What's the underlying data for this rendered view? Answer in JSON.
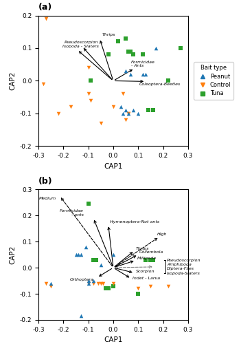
{
  "chart_data": [
    {
      "type": "scatter",
      "title": "(a)",
      "xlabel": "CAP1",
      "ylabel": "CAP2",
      "xlim": [
        -0.3,
        0.3
      ],
      "ylim": [
        -0.2,
        0.2
      ],
      "xticks": [
        -0.3,
        -0.2,
        -0.1,
        0.0,
        0.1,
        0.2,
        0.3
      ],
      "yticks": [
        -0.2,
        -0.1,
        0.0,
        0.1,
        0.2
      ],
      "grid": false,
      "legend": "right",
      "legend_title": "Bait type",
      "series": [
        {
          "name": "Peanut",
          "marker": "triangle_up",
          "x": [
            0.05,
            0.07,
            0.05,
            0.06,
            0.04,
            0.08,
            0.17,
            0.03,
            0.1,
            0.13,
            0.12
          ],
          "values": [
            0.03,
            0.02,
            -0.09,
            -0.1,
            -0.1,
            -0.09,
            0.1,
            -0.08,
            -0.1,
            0.02,
            0.02
          ]
        },
        {
          "name": "Control",
          "marker": "triangle_down",
          "x": [
            -0.27,
            -0.28,
            -0.22,
            -0.17,
            -0.1,
            -0.1,
            -0.09,
            -0.05,
            0.0,
            0.04,
            0.05,
            0.06,
            0.06
          ],
          "values": [
            0.19,
            -0.01,
            -0.1,
            -0.08,
            0.04,
            -0.04,
            -0.06,
            -0.13,
            -0.08,
            -0.04,
            -0.12,
            -0.1,
            -0.1
          ]
        },
        {
          "name": "Tuna",
          "marker": "square",
          "x": [
            -0.09,
            -0.02,
            0.02,
            0.05,
            0.06,
            0.07,
            0.08,
            0.12,
            0.14,
            0.16,
            0.22,
            0.27
          ],
          "values": [
            0.0,
            0.08,
            0.12,
            0.13,
            0.09,
            0.09,
            0.08,
            0.08,
            -0.09,
            -0.09,
            0.0,
            0.1
          ]
        }
      ],
      "arrow_origin": [
        0,
        0
      ],
      "annotations": [
        {
          "text": "Pseudoscorpion",
          "x": -0.195,
          "y": 0.113,
          "align": "left",
          "arrow_end": [
            -0.125,
            0.105
          ],
          "line_style": "solid"
        },
        {
          "text": "Isopoda - Slaters",
          "x": -0.205,
          "y": 0.1,
          "align": "left",
          "arrow_end": [
            -0.145,
            0.095
          ],
          "line_style": "solid"
        },
        {
          "text": "Thrips",
          "x": -0.045,
          "y": 0.135,
          "align": "left",
          "arrow_end": [
            -0.055,
            0.13
          ],
          "line_style": "solid"
        },
        {
          "text": "Formicidae\n- Ants",
          "x": 0.072,
          "y": 0.04,
          "align": "left",
          "arrow_end": [
            0.085,
            0.038
          ],
          "line_style": "solid"
        },
        {
          "text": "Coleoptera-Beetles",
          "x": 0.105,
          "y": -0.015,
          "align": "left",
          "arrow_end": [
            0.13,
            -0.002
          ],
          "line_style": "solid"
        }
      ]
    },
    {
      "type": "scatter",
      "title": "(b)",
      "xlabel": "CAP1",
      "ylabel": "CAP2",
      "xlim": [
        -0.3,
        0.3
      ],
      "ylim": [
        -0.2,
        0.3
      ],
      "xticks": [
        -0.3,
        -0.2,
        -0.1,
        0.0,
        0.1,
        0.2,
        0.3
      ],
      "yticks": [
        -0.2,
        -0.1,
        0.0,
        0.1,
        0.2,
        0.3
      ],
      "grid": false,
      "series": [
        {
          "marker": "triangle_up",
          "x": [
            -0.11,
            -0.13,
            -0.14,
            -0.15,
            -0.1,
            -0.08,
            -0.1,
            -0.25,
            -0.13,
            -0.05,
            0.0
          ],
          "values": [
            0.08,
            0.05,
            0.05,
            0.05,
            -0.05,
            -0.05,
            -0.06,
            -0.06,
            -0.185,
            0.01,
            0.05
          ]
        },
        {
          "marker": "triangle_down",
          "x": [
            -0.27,
            -0.25,
            -0.1,
            -0.08,
            -0.06,
            -0.05,
            -0.04,
            0.0,
            0.1,
            0.15,
            0.22
          ],
          "values": [
            -0.06,
            -0.07,
            -0.06,
            -0.06,
            -0.06,
            -0.06,
            -0.06,
            -0.06,
            -0.08,
            -0.07,
            -0.07
          ]
        },
        {
          "marker": "square",
          "x": [
            -0.1,
            -0.08,
            -0.07,
            -0.03,
            -0.02,
            0.0,
            0.13,
            0.15,
            0.16,
            0.1
          ],
          "values": [
            0.245,
            0.03,
            0.03,
            -0.08,
            -0.08,
            -0.07,
            0.03,
            0.03,
            0.03,
            -0.1
          ]
        }
      ],
      "arrow_origin": [
        0,
        0
      ],
      "annotations": [
        {
          "text": "Formicidae\n- ants",
          "x": -0.12,
          "y": 0.195,
          "align": "right",
          "arrow_end": [
            -0.08,
            0.19
          ],
          "line_style": "solid"
        },
        {
          "text": "Hymenoptera-Not ants",
          "x": -0.015,
          "y": 0.168,
          "align": "left",
          "arrow_end": [
            -0.02,
            0.165
          ],
          "line_style": "solid"
        },
        {
          "text": "Thrips",
          "x": 0.09,
          "y": 0.067,
          "align": "left",
          "arrow_end": [
            0.085,
            0.065
          ],
          "line_style": "solid"
        },
        {
          "text": "Collembola",
          "x": 0.105,
          "y": 0.052,
          "align": "left",
          "arrow_end": [
            0.1,
            0.05
          ],
          "line_style": "solid"
        },
        {
          "text": "Millipede",
          "x": 0.095,
          "y": 0.03,
          "align": "left",
          "arrow_end": [
            0.09,
            0.028
          ],
          "line_style": "solid"
        },
        {
          "text": "Scorpion",
          "x": 0.09,
          "y": -0.022,
          "align": "left",
          "arrow_end": [
            0.085,
            -0.02
          ],
          "line_style": "solid"
        },
        {
          "text": "Indet - Larva",
          "x": 0.077,
          "y": -0.046,
          "align": "left",
          "arrow_end": [
            0.072,
            -0.042
          ],
          "line_style": "solid"
        },
        {
          "text": "Orthoptera",
          "x": -0.175,
          "y": -0.052,
          "align": "left",
          "arrow_end": [
            -0.065,
            -0.038
          ],
          "line_style": "solid"
        },
        {
          "text": "Medium",
          "x": -0.23,
          "y": 0.258,
          "align": "right",
          "arrow_end": [
            -0.215,
            0.275
          ],
          "line_style": "dashed"
        },
        {
          "text": "High",
          "x": 0.175,
          "y": 0.122,
          "align": "left",
          "arrow_end": [
            0.185,
            0.118
          ],
          "line_style": "dashed"
        }
      ],
      "bracket": {
        "arrow_end": [
          0.165,
          0.003
        ],
        "color": "gray",
        "line_style": "dashed",
        "labels": [
          "Pseudoscorpion",
          "Amphipoda",
          "Diptera-Flies",
          "Isopoda-Slaters"
        ],
        "y": [
          0.028,
          0.012,
          -0.005,
          -0.022
        ]
      }
    }
  ]
}
